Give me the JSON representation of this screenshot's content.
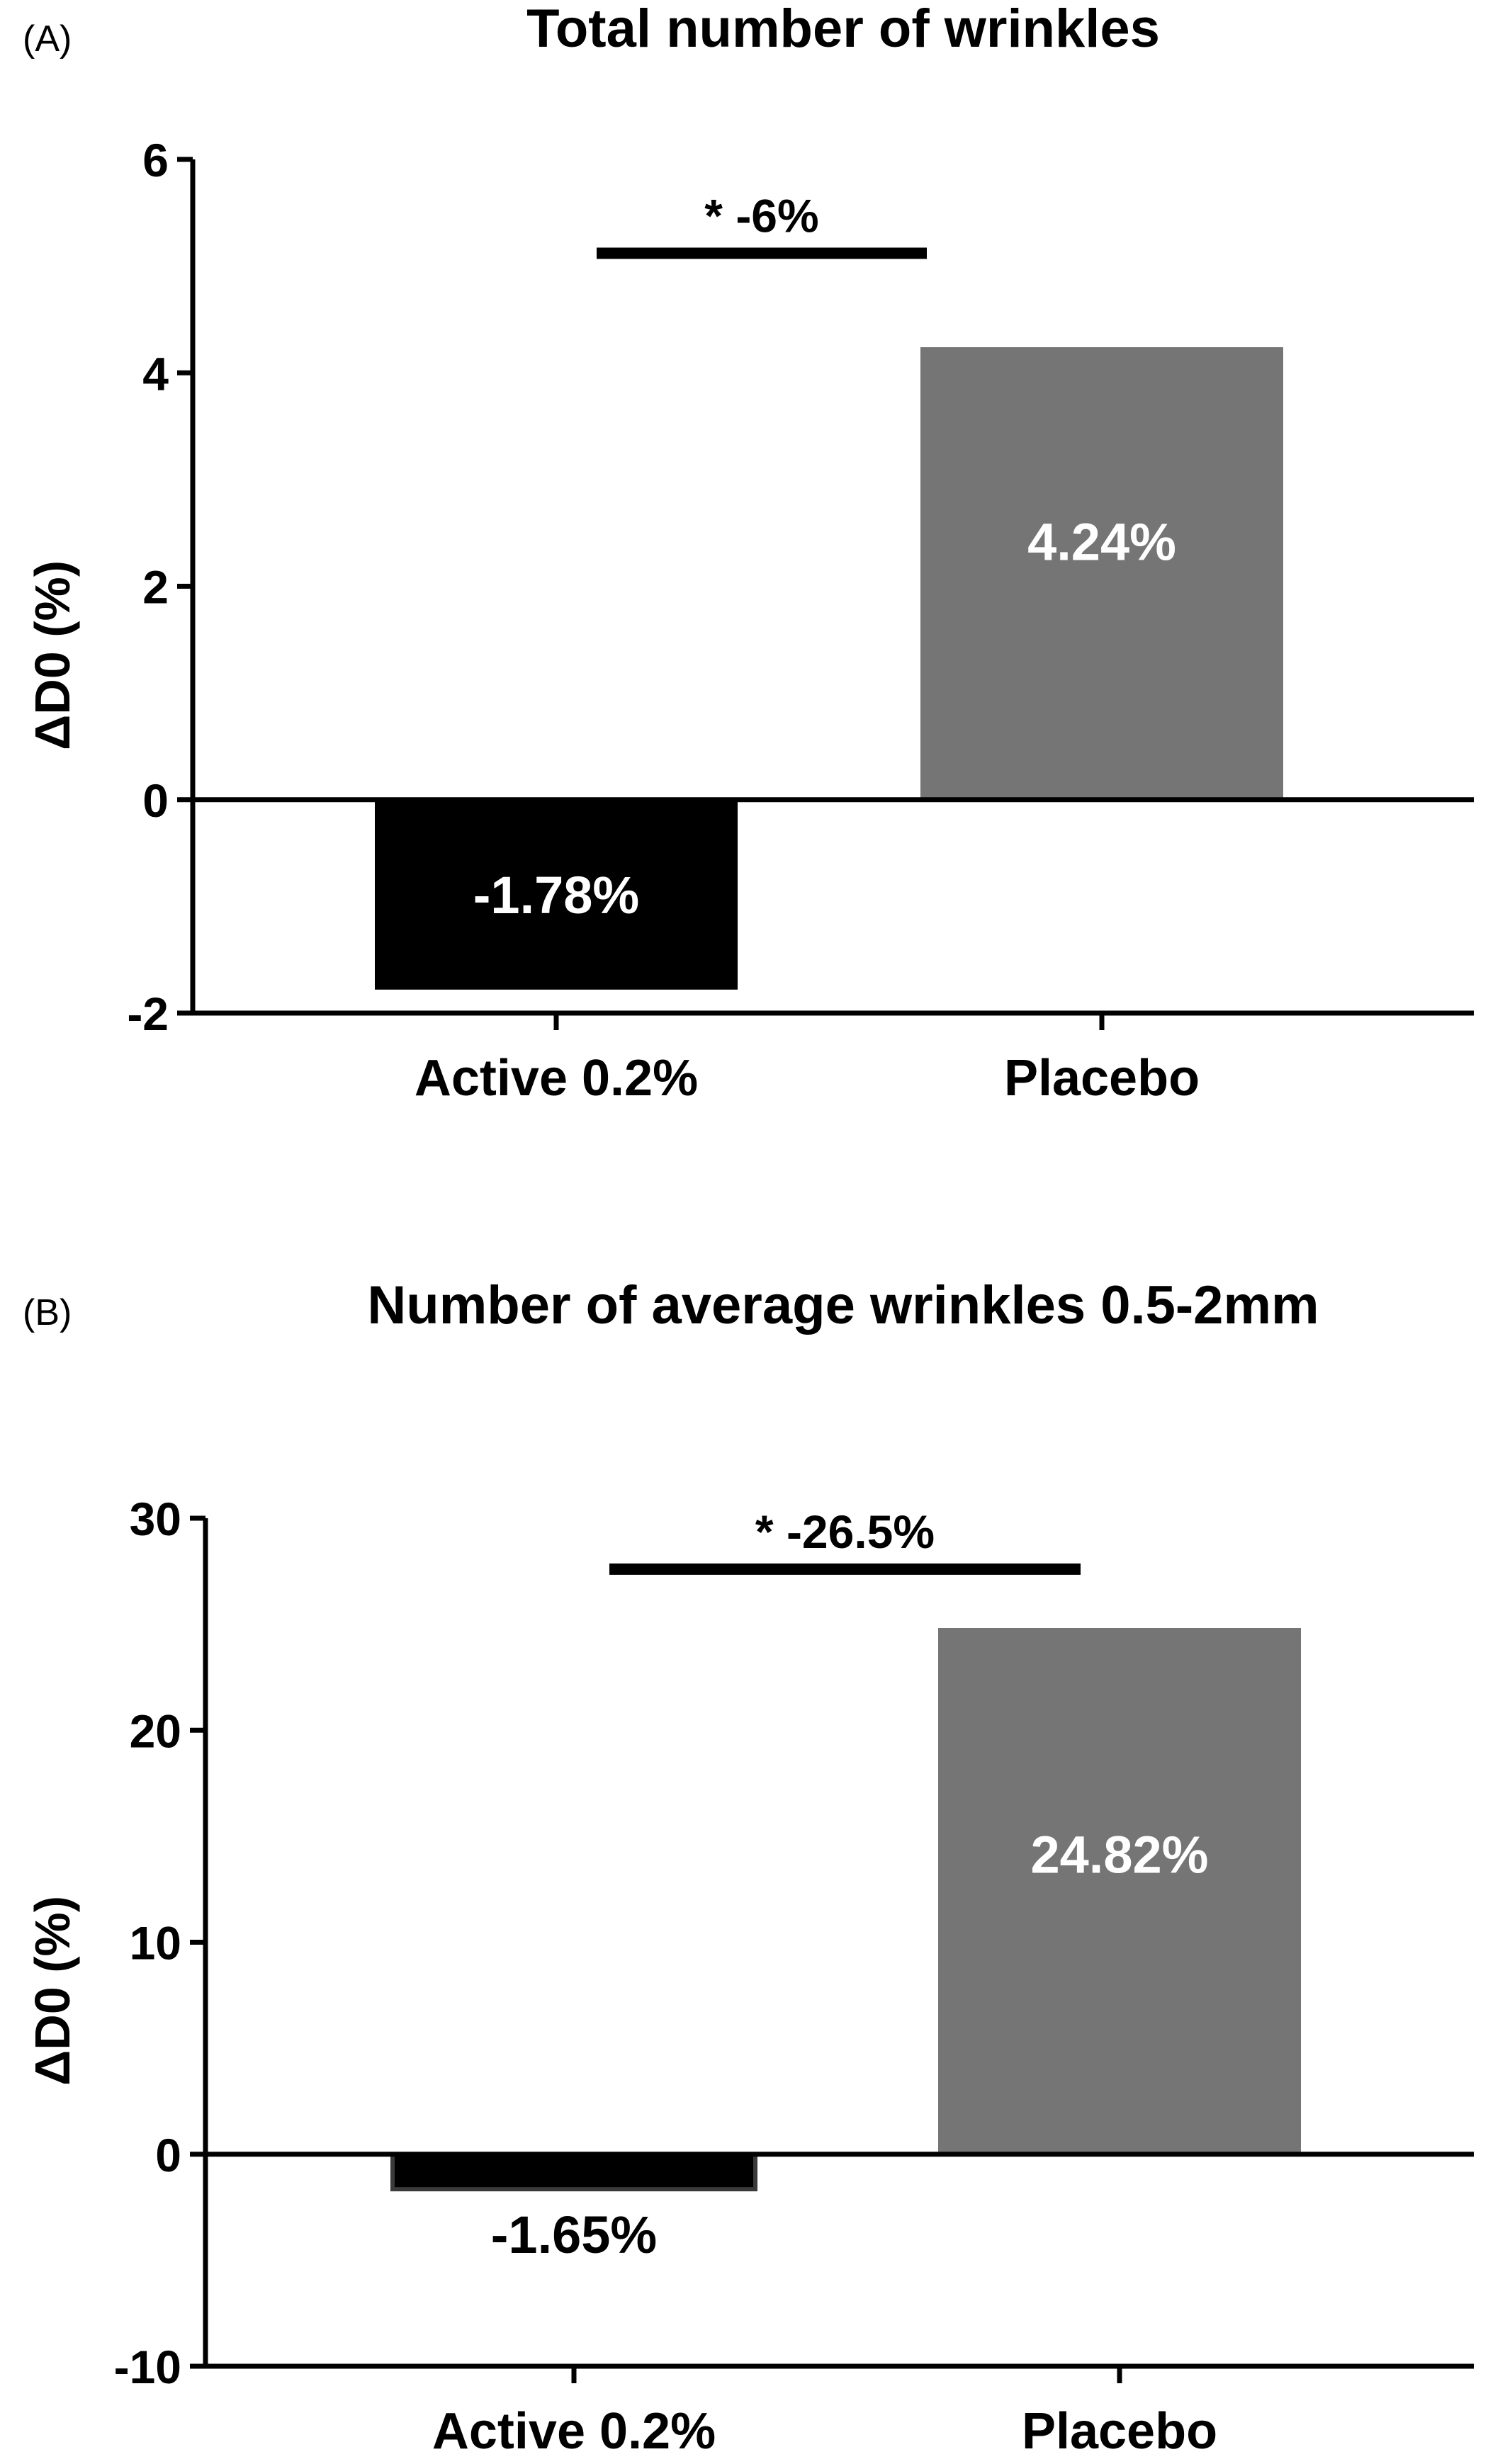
{
  "colors": {
    "active": "#000000",
    "placebo": "#757575",
    "axis": "#000000"
  },
  "chart_data": [
    {
      "type": "bar",
      "panel_label": "(A)",
      "title": "Total number of wrinkles",
      "ylabel": "ΔD0 (%)",
      "xlabel": "",
      "ylim": [
        -2,
        6
      ],
      "yticks": [
        "-2",
        "0",
        "2",
        "4",
        "6"
      ],
      "categories": [
        "Active 0.2%",
        "Placebo"
      ],
      "values": [
        -1.78,
        4.24
      ],
      "data_labels": [
        "-1.78%",
        "4.24%"
      ],
      "significance": {
        "label": "* -6%",
        "y": 5.12
      },
      "grid": false
    },
    {
      "type": "bar",
      "panel_label": "(B)",
      "title": "Number of average wrinkles 0.5-2mm",
      "ylabel": "ΔD0 (%)",
      "xlabel": "",
      "ylim": [
        -10,
        30
      ],
      "yticks": [
        "-10",
        "0",
        "10",
        "20",
        "30"
      ],
      "categories": [
        "Active 0.2%",
        "Placebo"
      ],
      "values": [
        -1.65,
        24.82
      ],
      "data_labels": [
        "-1.65%",
        "24.82%"
      ],
      "significance": {
        "label": "* -26.5%",
        "y": 27.6
      },
      "grid": false
    }
  ]
}
